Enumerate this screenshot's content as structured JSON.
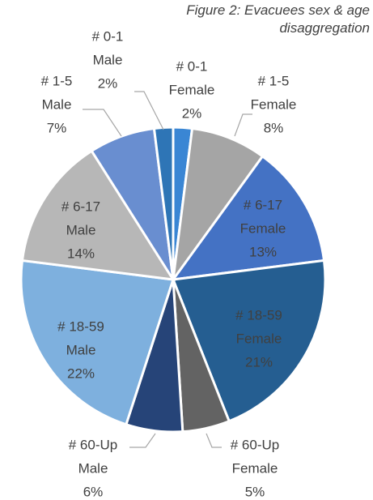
{
  "chart_data": {
    "type": "pie",
    "title": "Figure 2: Evacuees sex & age disaggregation",
    "categories": [
      [
        "# 0-1",
        "Female"
      ],
      [
        "# 1-5",
        "Female"
      ],
      [
        "# 6-17",
        "Female"
      ],
      [
        "# 18-59",
        "Female"
      ],
      [
        "# 60-Up",
        "Female"
      ],
      [
        "# 60-Up",
        "Male"
      ],
      [
        "# 18-59",
        "Male"
      ],
      [
        "# 6-17",
        "Male"
      ],
      [
        "# 1-5",
        "Male"
      ],
      [
        "# 0-1",
        "Male"
      ]
    ],
    "values": [
      2,
      8,
      13,
      21,
      5,
      6,
      22,
      14,
      7,
      2
    ],
    "value_labels": [
      "2%",
      "8%",
      "13%",
      "21%",
      "5%",
      "6%",
      "22%",
      "14%",
      "7%",
      "2%"
    ],
    "colors": [
      "#3a86d4",
      "#a5a5a5",
      "#4472c4",
      "#255e91",
      "#636363",
      "#264478",
      "#7eb0de",
      "#b7b7b7",
      "#698ed0",
      "#2e75b6"
    ]
  }
}
